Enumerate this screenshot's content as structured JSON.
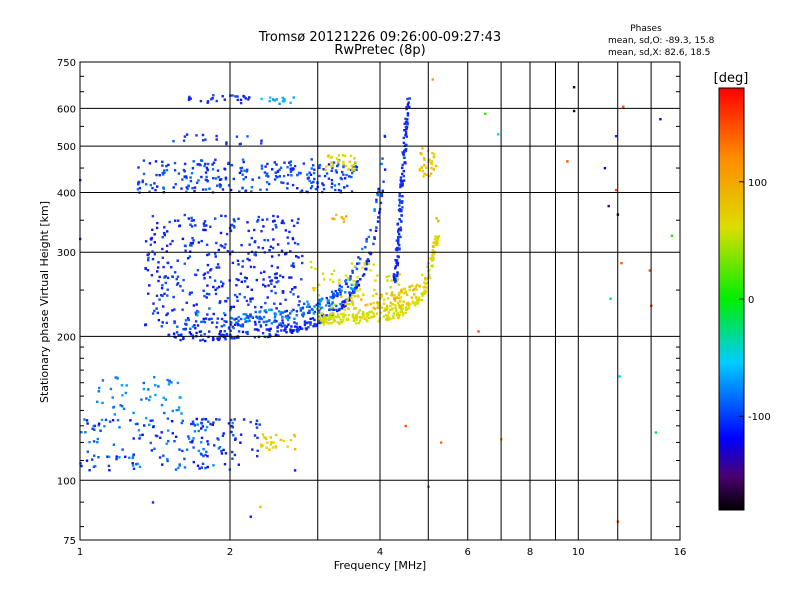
{
  "chart_data": {
    "type": "scatter",
    "title": "Tromsø 20121226 09:26:00-09:27:43",
    "subtitle": "RwPretec (8p)",
    "xlabel": "Frequency [MHz]",
    "ylabel": "Stationary phase Virtual Height [km]",
    "x_scale": "log",
    "y_scale": "log",
    "xlim": [
      1,
      16
    ],
    "ylim": [
      75,
      750
    ],
    "x_ticks": [
      1,
      2,
      4,
      6,
      8,
      10,
      16
    ],
    "x_tick_labels": [
      "1",
      "2",
      "4",
      "6",
      "8",
      "10",
      "16"
    ],
    "x_minor_ticks": [
      3,
      5,
      7,
      9,
      12,
      14
    ],
    "y_ticks": [
      75,
      100,
      200,
      300,
      400,
      500,
      600,
      750
    ],
    "y_tick_labels": [
      "75",
      "100",
      "200",
      "300",
      "400",
      "500",
      "600",
      "750"
    ],
    "y_minor_ticks": [
      80,
      90,
      110,
      120,
      130,
      140,
      150,
      160,
      170,
      180,
      190,
      250,
      350,
      450,
      550,
      650,
      700
    ],
    "grid": true,
    "stats": {
      "title": "Phases",
      "o_line": "mean, sd,O: -89.3, 15.8",
      "x_line": "mean, sd,X:  82.6, 18.5"
    },
    "colorbar": {
      "label": "[deg]",
      "range": [
        -180,
        180
      ],
      "ticks": [
        100,
        0,
        -100
      ],
      "tick_labels": [
        "100",
        "0",
        "-100"
      ]
    },
    "series": [
      {
        "mode": "O",
        "phase_deg": -89,
        "clusters": [
          {
            "f_range": [
              1.3,
              3.6
            ],
            "h_range": [
              400,
              470
            ],
            "phase_range": [
              -110,
              -70
            ],
            "count": 260
          },
          {
            "f_range": [
              1.35,
              2.8
            ],
            "h_range": [
              210,
              360
            ],
            "phase_range": [
              -115,
              -80
            ],
            "count": 380
          },
          {
            "f_range": [
              1.0,
              2.1
            ],
            "h_range": [
              105,
              135
            ],
            "phase_range": [
              -120,
              -55
            ],
            "count": 150
          },
          {
            "f_range": [
              1.05,
              1.6
            ],
            "h_range": [
              135,
              165
            ],
            "phase_range": [
              -80,
              -50
            ],
            "count": 50
          },
          {
            "f_range": [
              1.6,
              2.2
            ],
            "h_range": [
              612,
              640
            ],
            "phase_range": [
              -110,
              -85
            ],
            "count": 25
          },
          {
            "f_range": [
              2.3,
              2.7
            ],
            "h_range": [
              612,
              635
            ],
            "phase_range": [
              -60,
              -35
            ],
            "count": 14
          },
          {
            "f_range": [
              1.5,
              2.4
            ],
            "h_range": [
              505,
              530
            ],
            "phase_range": [
              -105,
              -80
            ],
            "count": 18
          },
          {
            "f_range": [
              1.6,
              2.3
            ],
            "h_range": [
              110,
              135
            ],
            "phase_range": [
              -110,
              -85
            ],
            "count": 40
          }
        ],
        "traces": [
          {
            "f_start": 1.5,
            "f_end": 4.1,
            "h_base": 200,
            "h_growth": 55,
            "f_cutoff": 4.35,
            "h_jitter": 5,
            "phase_range": [
              -120,
              -85
            ],
            "count": 220
          },
          {
            "f_start": 1.5,
            "f_end": 4.1,
            "h_base": 212,
            "h_growth": 70,
            "f_cutoff": 4.35,
            "h_jitter": 6,
            "phase_range": [
              -110,
              -60
            ],
            "count": 140
          },
          {
            "f_start": 1.7,
            "f_end": 3.6,
            "h_base": 222,
            "h_growth": 40,
            "f_cutoff": 4.35,
            "h_jitter": 8,
            "phase_range": [
              -90,
              -50
            ],
            "count": 80
          }
        ],
        "columns": [
          {
            "f_range": [
              4.15,
              4.55
            ],
            "h_range": [
              260,
              630
            ],
            "phase_range": [
              -110,
              -85
            ],
            "count": 130
          }
        ]
      },
      {
        "mode": "X",
        "phase_deg": 83,
        "clusters": [
          {
            "f_range": [
              2.9,
              4.5
            ],
            "h_range": [
              225,
              290
            ],
            "phase_range": [
              75,
              100
            ],
            "count": 70
          },
          {
            "f_range": [
              2.3,
              2.7
            ],
            "h_range": [
              115,
              125
            ],
            "phase_range": [
              85,
              110
            ],
            "count": 25
          },
          {
            "f_range": [
              3.1,
              3.6
            ],
            "h_range": [
              445,
              480
            ],
            "phase_range": [
              80,
              105
            ],
            "count": 30
          },
          {
            "f_range": [
              4.8,
              5.2
            ],
            "h_range": [
              430,
              500
            ],
            "phase_range": [
              85,
              115
            ],
            "count": 30
          },
          {
            "f_range": [
              3.2,
              3.5
            ],
            "h_range": [
              345,
              360
            ],
            "phase_range": [
              100,
              125
            ],
            "count": 8
          }
        ],
        "traces": [
          {
            "f_start": 3.0,
            "f_end": 5.25,
            "h_base": 218,
            "h_growth": 18,
            "f_cutoff": 5.35,
            "h_jitter": 6,
            "phase_range": [
              75,
              100
            ],
            "count": 200
          },
          {
            "f_start": 3.4,
            "f_end": 5.25,
            "h_base": 235,
            "h_growth": 22,
            "f_cutoff": 5.35,
            "h_jitter": 10,
            "phase_range": [
              85,
              115
            ],
            "count": 110
          }
        ],
        "points": [
          {
            "f": 5.1,
            "h": 690,
            "phase_deg": 120
          },
          {
            "f": 4.5,
            "h": 130,
            "phase_deg": 150
          },
          {
            "f": 5.0,
            "h": 97,
            "phase_deg": 150
          },
          {
            "f": 5.3,
            "h": 120,
            "phase_deg": 140
          },
          {
            "f": 7.0,
            "h": 122,
            "phase_deg": 120
          },
          {
            "f": 9.5,
            "h": 465,
            "phase_deg": 150
          },
          {
            "f": 12.3,
            "h": 605,
            "phase_deg": 150
          },
          {
            "f": 12.0,
            "h": 82,
            "phase_deg": 150
          },
          {
            "f": 13.9,
            "h": 275,
            "phase_deg": 150
          },
          {
            "f": 14.0,
            "h": 232,
            "phase_deg": 150
          },
          {
            "f": 11.9,
            "h": 405,
            "phase_deg": 150
          },
          {
            "f": 12.2,
            "h": 285,
            "phase_deg": 150
          },
          {
            "f": 6.3,
            "h": 205,
            "phase_deg": 150
          },
          {
            "f": 2.3,
            "h": 88,
            "phase_deg": 110
          }
        ]
      },
      {
        "mode": "sporadic",
        "points": [
          {
            "f": 11.3,
            "h": 450,
            "phase_deg": -120
          },
          {
            "f": 11.5,
            "h": 375,
            "phase_deg": -140
          },
          {
            "f": 11.9,
            "h": 525,
            "phase_deg": -100
          },
          {
            "f": 14.6,
            "h": 570,
            "phase_deg": -130
          },
          {
            "f": 12.0,
            "h": 360,
            "phase_deg": -170
          },
          {
            "f": 11.6,
            "h": 240,
            "phase_deg": -20
          },
          {
            "f": 12.1,
            "h": 165,
            "phase_deg": -30
          },
          {
            "f": 14.3,
            "h": 126,
            "phase_deg": -10
          },
          {
            "f": 15.4,
            "h": 325,
            "phase_deg": 20
          },
          {
            "f": 6.5,
            "h": 585,
            "phase_deg": 20
          },
          {
            "f": 6.9,
            "h": 530,
            "phase_deg": -30
          },
          {
            "f": 9.8,
            "h": 665,
            "phase_deg": -170
          },
          {
            "f": 9.8,
            "h": 593,
            "phase_deg": -170
          },
          {
            "f": 1.4,
            "h": 90,
            "phase_deg": -100
          },
          {
            "f": 2.2,
            "h": 84,
            "phase_deg": -110
          },
          {
            "f": 2.7,
            "h": 105,
            "phase_deg": -110
          },
          {
            "f": 1.0,
            "h": 425,
            "phase_deg": -100
          },
          {
            "f": 1.0,
            "h": 320,
            "phase_deg": -100
          }
        ]
      }
    ]
  }
}
